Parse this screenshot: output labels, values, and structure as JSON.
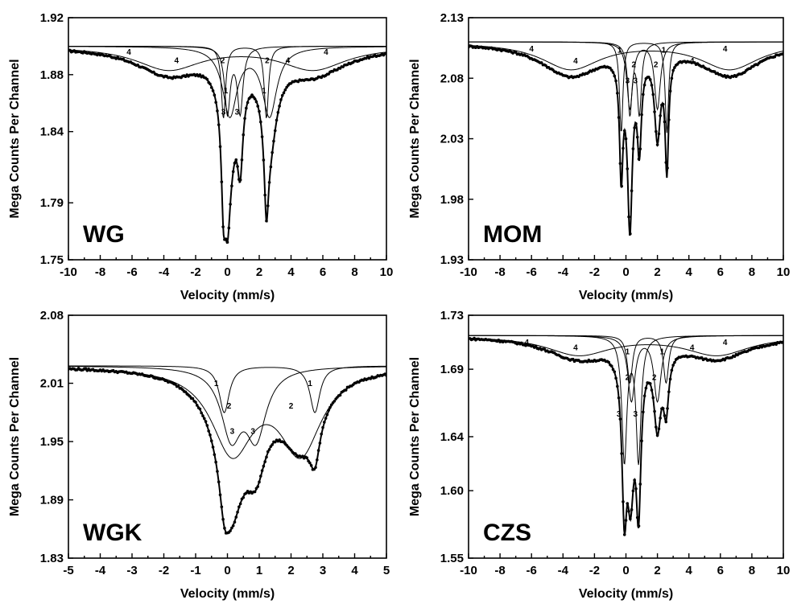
{
  "chart_data": [
    {
      "type": "line",
      "label": "WG",
      "xlabel": "Velocity (mm/s)",
      "ylabel": "Mega Counts Per Channel",
      "xlim": [
        -10,
        10
      ],
      "ylim": [
        1.75,
        1.92
      ],
      "xticks": [
        -10,
        -8,
        -6,
        -4,
        -2,
        0,
        2,
        4,
        6,
        8,
        10
      ],
      "xtick_labels": [
        "-10",
        "-8",
        "-6",
        "-4",
        "-2",
        "0",
        "2",
        "4",
        "6",
        "8",
        "10"
      ],
      "yticks": [
        1.75,
        1.79,
        1.84,
        1.88,
        1.92
      ],
      "ytick_labels": [
        "1.75",
        "1.79",
        "1.84",
        "1.88",
        "1.92"
      ],
      "baseline": 1.9,
      "components": [
        {
          "id": "1",
          "type": "doublet",
          "positions": [
            -0.25,
            2.45
          ],
          "depth": 0.0505,
          "width": 0.32,
          "labels": [
            [
              -0.1,
              1.867
            ],
            [
              2.3,
              1.867
            ]
          ]
        },
        {
          "id": "2",
          "type": "doublet",
          "positions": [
            0.15,
            2.65
          ],
          "depth": 0.048,
          "width": 1.1,
          "labels": [
            [
              -0.3,
              1.888
            ],
            [
              2.5,
              1.888
            ]
          ]
        },
        {
          "id": "3",
          "type": "doublet",
          "positions": [
            0.0,
            0.8
          ],
          "depth": 0.046,
          "width": 0.42,
          "labels": [
            [
              -0.25,
              1.852
            ],
            [
              0.6,
              1.852
            ]
          ]
        },
        {
          "id": "4",
          "type": "broad",
          "positions": [
            -3.7,
            5.4
          ],
          "depth": 0.016,
          "width": 5.0,
          "labels": [
            [
              -6.2,
              1.894
            ],
            [
              -3.2,
              1.888
            ],
            [
              3.8,
              1.888
            ],
            [
              6.2,
              1.894
            ]
          ]
        }
      ],
      "measured_min": 1.762
    },
    {
      "type": "line",
      "label": "MOM",
      "xlabel": "Velocity (mm/s)",
      "ylabel": "Mega Counts Per Channel",
      "xlim": [
        -10,
        10
      ],
      "ylim": [
        1.93,
        2.13
      ],
      "xticks": [
        -10,
        -8,
        -6,
        -4,
        -2,
        0,
        2,
        4,
        6,
        8,
        10
      ],
      "xtick_labels": [
        "-10",
        "-8",
        "-6",
        "-4",
        "-2",
        "0",
        "2",
        "4",
        "6",
        "8",
        "10"
      ],
      "yticks": [
        1.93,
        1.98,
        2.03,
        2.08,
        2.13
      ],
      "ytick_labels": [
        "1.93",
        "1.98",
        "2.03",
        "2.08",
        "2.13"
      ],
      "baseline": 2.11,
      "components": [
        {
          "id": "1",
          "type": "doublet",
          "positions": [
            -0.3,
            2.6
          ],
          "depth": 0.075,
          "width": 0.26,
          "labels": [
            [
              -0.4,
              2.101
            ],
            [
              2.4,
              2.101
            ]
          ]
        },
        {
          "id": "2",
          "type": "doublet",
          "positions": [
            0.25,
            2.0
          ],
          "depth": 0.055,
          "width": 0.45,
          "labels": [
            [
              0.5,
              2.089
            ],
            [
              1.9,
              2.089
            ]
          ]
        },
        {
          "id": "3",
          "type": "doublet",
          "positions": [
            0.25,
            0.85
          ],
          "depth": 0.058,
          "width": 0.32,
          "labels": [
            [
              0.1,
              2.076
            ],
            [
              0.6,
              2.076
            ]
          ]
        },
        {
          "id": "4",
          "type": "broad",
          "positions": [
            -3.5,
            6.6
          ],
          "depth": 0.022,
          "width": 4.6,
          "labels": [
            [
              -6.0,
              2.102
            ],
            [
              -3.2,
              2.092
            ],
            [
              4.2,
              2.092
            ],
            [
              6.3,
              2.102
            ]
          ]
        }
      ],
      "measured_min": 1.95
    },
    {
      "type": "line",
      "label": "WGK",
      "xlabel": "Velocity (mm/s)",
      "ylabel": "Mega Counts Per Channel",
      "xlim": [
        -5,
        5
      ],
      "ylim": [
        1.83,
        2.08
      ],
      "xticks": [
        -5,
        -4,
        -3,
        -2,
        -1,
        0,
        1,
        2,
        3,
        4,
        5
      ],
      "xtick_labels": [
        "-5",
        "-4",
        "-3",
        "-2",
        "-1",
        "0",
        "1",
        "2",
        "3",
        "4",
        "5"
      ],
      "yticks": [
        1.83,
        1.89,
        1.95,
        2.01,
        2.08
      ],
      "ytick_labels": [
        "1.83",
        "1.89",
        "1.95",
        "2.01",
        "2.08"
      ],
      "baseline": 2.028,
      "components": [
        {
          "id": "1",
          "type": "doublet",
          "positions": [
            -0.1,
            2.75
          ],
          "depth": 0.048,
          "width": 0.38,
          "labels": [
            [
              -0.35,
              2.007
            ],
            [
              2.6,
              2.007
            ]
          ]
        },
        {
          "id": "2",
          "type": "doublet",
          "positions": [
            0.15,
            2.3
          ],
          "depth": 0.085,
          "width": 1.6,
          "labels": [
            [
              0.05,
              1.984
            ],
            [
              2.0,
              1.984
            ]
          ]
        },
        {
          "id": "3",
          "type": "doublet",
          "positions": [
            0.12,
            0.9
          ],
          "depth": 0.068,
          "width": 0.78,
          "labels": [
            [
              0.15,
              1.958
            ],
            [
              0.8,
              1.958
            ]
          ]
        }
      ],
      "measured_min": 1.856
    },
    {
      "type": "line",
      "label": "CZS",
      "xlabel": "Velocity (mm/s)",
      "ylabel": "Mega Counts Per Channel",
      "xlim": [
        -10,
        10
      ],
      "ylim": [
        1.55,
        1.73
      ],
      "xticks": [
        -10,
        -8,
        -6,
        -4,
        -2,
        0,
        2,
        4,
        6,
        8,
        10
      ],
      "xtick_labels": [
        "-10",
        "-8",
        "-6",
        "-4",
        "-2",
        "0",
        "2",
        "4",
        "6",
        "8",
        "10"
      ],
      "yticks": [
        1.55,
        1.6,
        1.64,
        1.69,
        1.73
      ],
      "ytick_labels": [
        "1.55",
        "1.60",
        "1.64",
        "1.69",
        "1.73"
      ],
      "baseline": 1.715,
      "components": [
        {
          "id": "1",
          "type": "doublet",
          "positions": [
            0.25,
            2.55
          ],
          "depth": 0.035,
          "width": 0.4,
          "labels": [
            [
              0.1,
              1.701
            ],
            [
              2.3,
              1.701
            ]
          ]
        },
        {
          "id": "2",
          "type": "doublet",
          "positions": [
            0.35,
            2.0
          ],
          "depth": 0.048,
          "width": 0.55,
          "labels": [
            [
              0.1,
              1.682
            ],
            [
              1.8,
              1.682
            ]
          ]
        },
        {
          "id": "3",
          "type": "doublet",
          "positions": [
            -0.1,
            0.8
          ],
          "depth": 0.092,
          "width": 0.38,
          "labels": [
            [
              -0.45,
              1.655
            ],
            [
              0.6,
              1.655
            ]
          ]
        },
        {
          "id": "4",
          "type": "broad",
          "positions": [
            -3.0,
            5.8
          ],
          "depth": 0.014,
          "width": 5.0,
          "labels": [
            [
              -6.3,
              1.708
            ],
            [
              -3.2,
              1.704
            ],
            [
              4.2,
              1.704
            ],
            [
              6.3,
              1.708
            ]
          ]
        }
      ],
      "measured_min": 1.567
    }
  ]
}
